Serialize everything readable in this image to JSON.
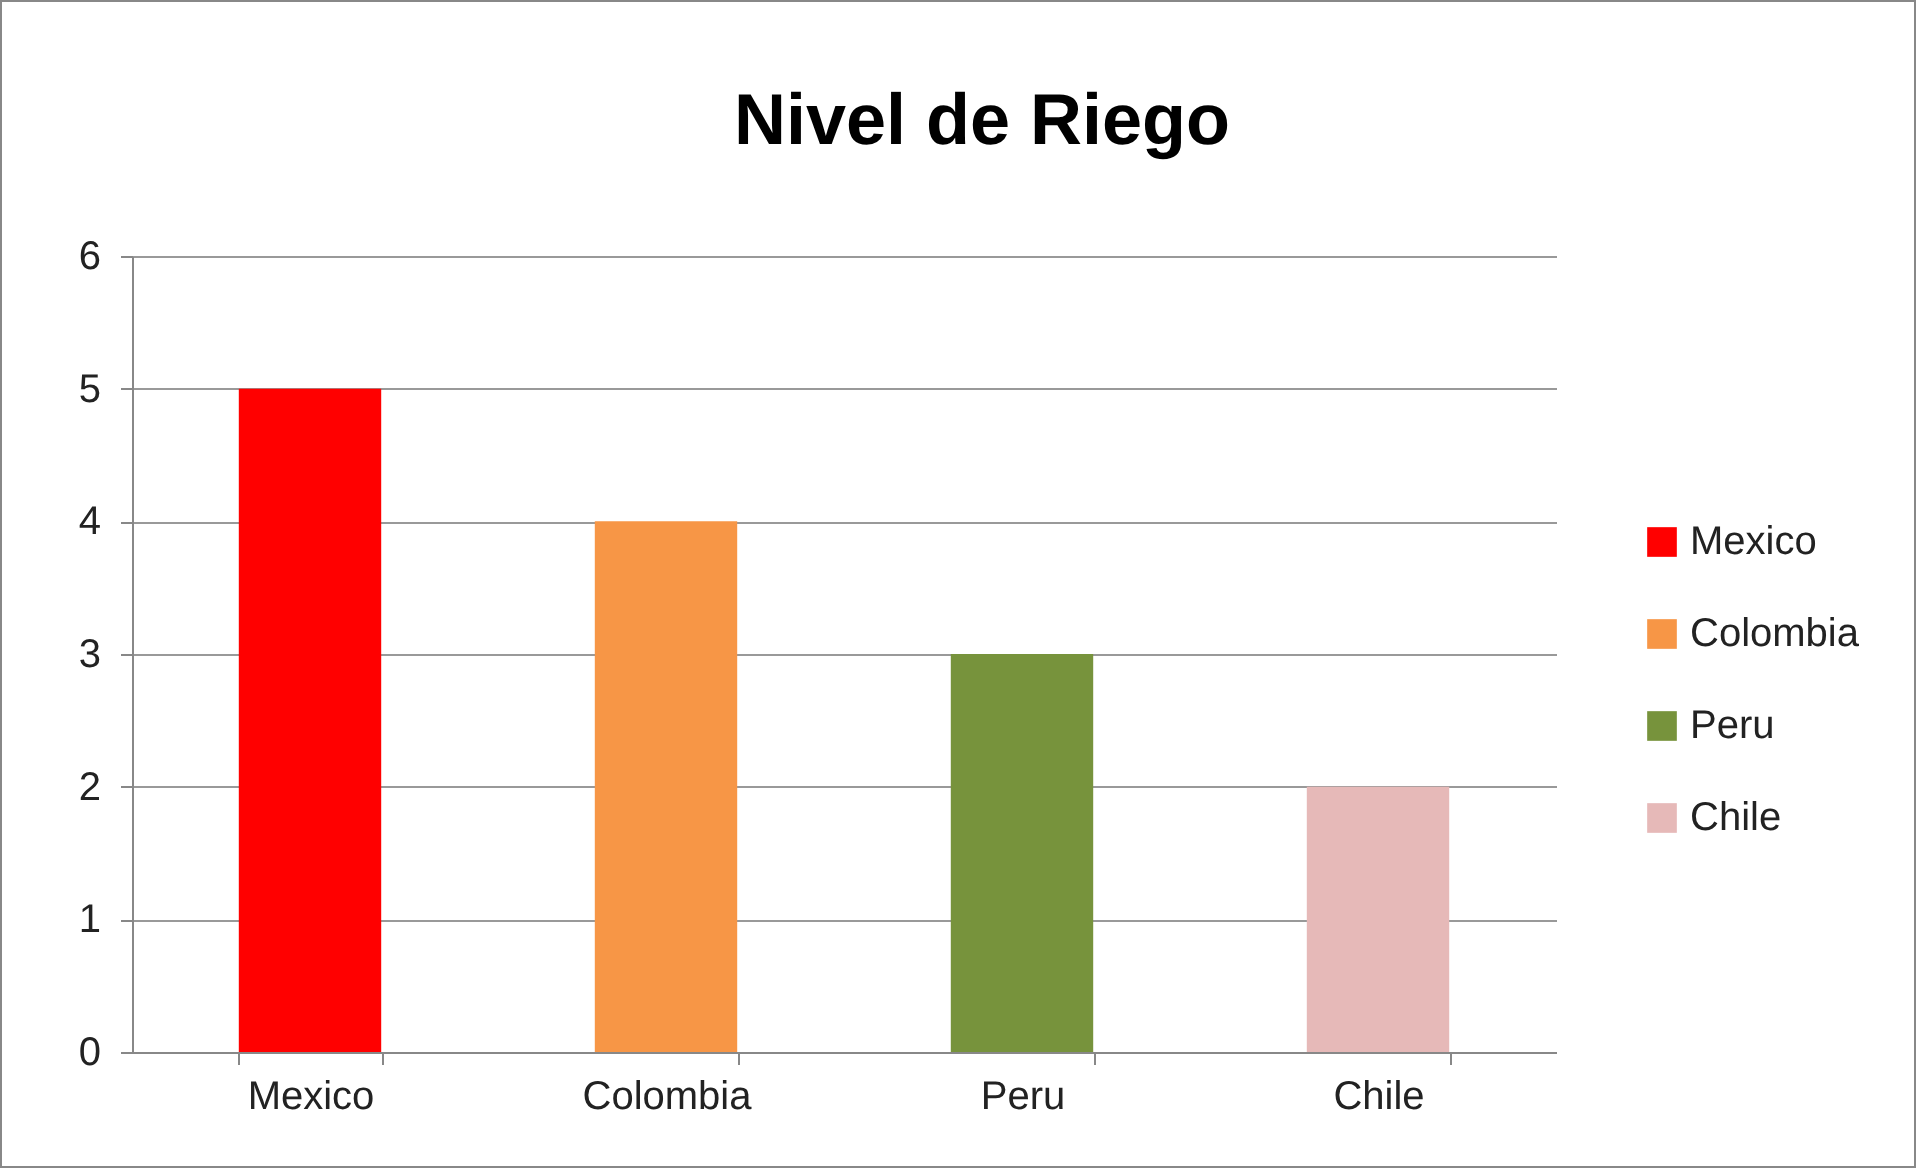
{
  "chart_data": {
    "type": "bar",
    "title": "Nivel de Riego",
    "categories": [
      "Mexico",
      "Colombia",
      "Peru",
      "Chile"
    ],
    "stacked": true,
    "series": [
      {
        "name": "Mexico",
        "color": "#ff0000",
        "values": [
          5,
          null,
          null,
          null
        ]
      },
      {
        "name": "Colombia",
        "color": "#f79646",
        "values": [
          null,
          4,
          null,
          null
        ]
      },
      {
        "name": "Peru",
        "color": "#77933c",
        "values": [
          null,
          null,
          3,
          null
        ]
      },
      {
        "name": "Chile",
        "color": "#e6b9b8",
        "values": [
          null,
          null,
          null,
          2
        ]
      }
    ],
    "ylim": [
      0,
      6
    ],
    "yticks": [
      0,
      1,
      2,
      3,
      4,
      5,
      6
    ],
    "grid": "y",
    "legend": "right"
  }
}
